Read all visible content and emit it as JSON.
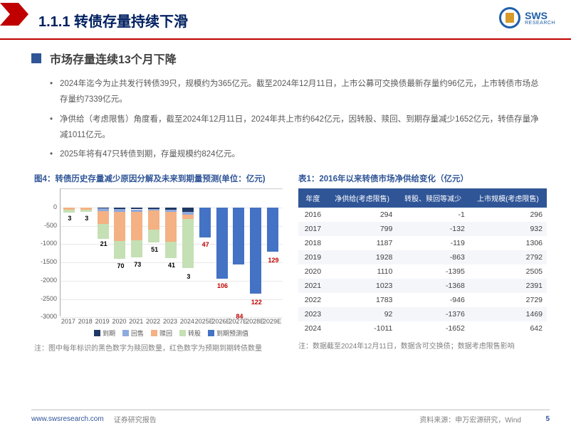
{
  "header": {
    "section_no": "1.1.1",
    "title": "转债存量持续下滑",
    "logo_text": "SWS",
    "logo_sub": "RESEARCH",
    "accent_color": "#c00000",
    "title_color": "#002060"
  },
  "subhead": "市场存量连续13个月下降",
  "paragraphs": [
    "2024年迄今为止共发行转债39只，规模约为365亿元。截至2024年12月11日，上市公募可交换债最新存量约96亿元，上市转债市场总存量约7339亿元。",
    "净供给（考虑限售）角度看，截至2024年12月11日，2024年共上市约642亿元，因转股、赎回、到期存量减少1652亿元，转债存量净减1011亿元。",
    "2025年将有47只转债到期，存量规模约824亿元。"
  ],
  "figure": {
    "title": "图4：转债历史存量减少原因分解及未来到期量预测(单位：亿元)",
    "type": "stacked-bar",
    "ylim": [
      -3000,
      500
    ],
    "ytick_step": 500,
    "yticks": [
      0,
      -500,
      -1000,
      -1500,
      -2000,
      -2500,
      -3000
    ],
    "categories": [
      "2017",
      "2018",
      "2019",
      "2020",
      "2021",
      "2022",
      "2023",
      "2024",
      "2025E",
      "2026E",
      "2027E",
      "2028E",
      "2029E"
    ],
    "series": {
      "daoqi": {
        "label": "到期",
        "color": "#1f3864"
      },
      "huishou": {
        "label": "回售",
        "color": "#8faadc"
      },
      "shuhui": {
        "label": "赎回",
        "color": "#f4b183"
      },
      "zhuangu": {
        "label": "转股",
        "color": "#c5e0b4"
      },
      "yuqi": {
        "label": "到期预测值",
        "color": "#4472c4"
      }
    },
    "bars": [
      {
        "cat": "2017",
        "totals": {
          "daoqi": 0,
          "huishou": -5,
          "shuhui": -60,
          "zhuangu": -70,
          "yuqi": 0
        },
        "black": "3",
        "black_y": 36,
        "red": null
      },
      {
        "cat": "2018",
        "totals": {
          "daoqi": 0,
          "huishou": -8,
          "shuhui": -50,
          "zhuangu": -60,
          "yuqi": 0
        },
        "black": "3",
        "black_y": 36,
        "red": null
      },
      {
        "cat": "2019",
        "totals": {
          "daoqi": -30,
          "huishou": -60,
          "shuhui": -350,
          "zhuangu": -420,
          "yuqi": 0
        },
        "black": "21",
        "black_y": 72,
        "red": null
      },
      {
        "cat": "2020",
        "totals": {
          "daoqi": -40,
          "huishou": -80,
          "shuhui": -800,
          "zhuangu": -480,
          "yuqi": 0
        },
        "black": "70",
        "black_y": 103,
        "red": null
      },
      {
        "cat": "2021",
        "totals": {
          "daoqi": -50,
          "huishou": -70,
          "shuhui": -780,
          "zhuangu": -470,
          "yuqi": 0
        },
        "black": "73",
        "black_y": 101,
        "red": null
      },
      {
        "cat": "2022",
        "totals": {
          "daoqi": -40,
          "huishou": -40,
          "shuhui": -520,
          "zhuangu": -350,
          "yuqi": 0
        },
        "black": "51",
        "black_y": 80,
        "red": null
      },
      {
        "cat": "2023",
        "totals": {
          "daoqi": -60,
          "huishou": -60,
          "shuhui": -820,
          "zhuangu": -440,
          "yuqi": 0
        },
        "black": "41",
        "black_y": 102,
        "red": null
      },
      {
        "cat": "2024",
        "totals": {
          "daoqi": -120,
          "huishou": -80,
          "shuhui": -110,
          "zhuangu": -1340,
          "yuqi": 0
        },
        "black": "3",
        "black_y": 118,
        "red": null
      },
      {
        "cat": "2025E",
        "totals": {
          "daoqi": 0,
          "huishou": 0,
          "shuhui": 0,
          "zhuangu": 0,
          "yuqi": -820
        },
        "black": null,
        "red": "47",
        "red_y": 73
      },
      {
        "cat": "2026E",
        "totals": {
          "daoqi": 0,
          "huishou": 0,
          "shuhui": 0,
          "zhuangu": 0,
          "yuqi": -1950
        },
        "black": null,
        "red": "106",
        "red_y": 131
      },
      {
        "cat": "2027E",
        "totals": {
          "daoqi": 0,
          "huishou": 0,
          "shuhui": 0,
          "zhuangu": 0,
          "yuqi": -1550
        },
        "black": null,
        "red": "84",
        "red_y": 174
      },
      {
        "cat": "2028E",
        "totals": {
          "daoqi": 0,
          "huishou": 0,
          "shuhui": 0,
          "zhuangu": 0,
          "yuqi": -2350
        },
        "black": null,
        "red": "122",
        "red_y": 154
      },
      {
        "cat": "2029E",
        "totals": {
          "daoqi": 0,
          "huishou": 0,
          "shuhui": 0,
          "zhuangu": 0,
          "yuqi": -1200
        },
        "black": null,
        "red": "129",
        "red_y": 95
      }
    ],
    "note": "注：图中每年标识的黑色数字为赎回数量，红色数字为预期到期转债数量"
  },
  "table": {
    "title": "表1：2016年以来转债市场净供给变化（亿元）",
    "columns": [
      "年度",
      "净供给(考虑限售)",
      "转股、赎回等减少",
      "上市规模(考虑限售)"
    ],
    "rows": [
      [
        "2016",
        "294",
        "-1",
        "296"
      ],
      [
        "2017",
        "799",
        "-132",
        "932"
      ],
      [
        "2018",
        "1187",
        "-119",
        "1306"
      ],
      [
        "2019",
        "1928",
        "-863",
        "2792"
      ],
      [
        "2020",
        "1110",
        "-1395",
        "2505"
      ],
      [
        "2021",
        "1023",
        "-1368",
        "2391"
      ],
      [
        "2022",
        "1783",
        "-946",
        "2729"
      ],
      [
        "2023",
        "92",
        "-1376",
        "1469"
      ],
      [
        "2024",
        "-1011",
        "-1652",
        "642"
      ]
    ],
    "note": "注：数据截至2024年12月11日，数据含可交换债；数据考虑限售影响",
    "header_bg": "#2f5597",
    "header_fg": "#ffffff"
  },
  "footer": {
    "url": "www.swsresearch.com",
    "label": "证券研究报告",
    "source": "资料来源：申万宏源研究，Wind",
    "page": "5"
  }
}
